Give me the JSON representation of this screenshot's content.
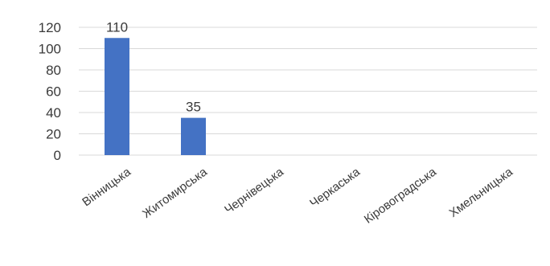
{
  "chart_data": {
    "type": "bar",
    "categories": [
      "Вінницька",
      "Житомирська",
      "Чернівецька",
      "Черкаська",
      "Кіровоградська",
      "Хмельницька"
    ],
    "values": [
      110,
      35,
      0,
      0,
      0,
      0
    ],
    "data_labels": [
      "110",
      "35",
      "",
      "",
      "",
      ""
    ],
    "ylim": [
      0,
      120
    ],
    "y_ticks": [
      0,
      20,
      40,
      60,
      80,
      100,
      120
    ],
    "y_tick_labels": [
      "0",
      "20",
      "40",
      "60",
      "80",
      "100",
      "120"
    ],
    "grid": true,
    "legend": "none",
    "colors": {
      "bar": "#4472C4",
      "grid": "#d9d9d9",
      "text": "#3a3a3a"
    }
  }
}
